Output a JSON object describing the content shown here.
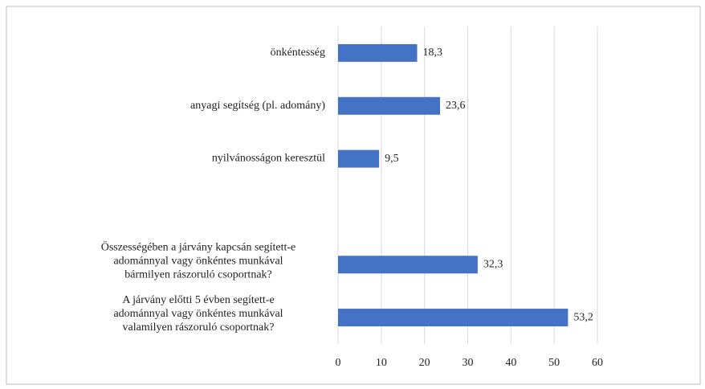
{
  "chart_data": {
    "type": "hbar",
    "categories": [
      "önkéntesség",
      "anyagi segítség (pl. adomány)",
      "nyilvánosságon keresztül",
      null,
      "Összességében a járvány kapcsán segített-e\nadománnyal vagy önkéntes munkával\nbármilyen rászoruló csoportnak?",
      "A járvány előtti 5 évben segített-e\nadománnyal vagy önkéntes munkával\nvalamilyen rászoruló csoportnak?"
    ],
    "values": [
      18.3,
      23.6,
      9.5,
      null,
      32.3,
      53.2
    ],
    "value_labels": [
      "18,3",
      "23,6",
      "9,5",
      null,
      "32,3",
      "53,2"
    ],
    "color": "#4472c4",
    "xlim": [
      0,
      60
    ],
    "xticks": [
      0,
      10,
      20,
      30,
      40,
      50,
      60
    ],
    "grid": true
  }
}
